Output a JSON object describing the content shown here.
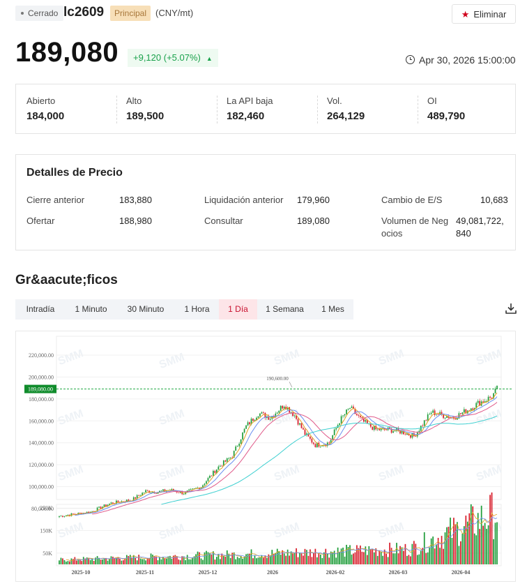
{
  "header": {
    "status_label": "Cerrado",
    "symbol": "lc2609",
    "contract_badge": "Principal",
    "unit": "(CNY/mt)",
    "remove_label": "Eliminar"
  },
  "quote": {
    "price": "189,080",
    "change_text": "+9,120 (+5.07%)",
    "timestamp": "Apr 30, 2026 15:00:00"
  },
  "stats": [
    {
      "label": "Abierto",
      "value": "184,000"
    },
    {
      "label": "Alto",
      "value": "189,500"
    },
    {
      "label": "La API baja",
      "value": "182,460"
    },
    {
      "label": "Vol.",
      "value": "264,129"
    },
    {
      "label": "OI",
      "value": "489,790"
    }
  ],
  "details": {
    "title": "Detalles de Precio",
    "items": [
      {
        "label": "Cierre anterior",
        "value": "183,880"
      },
      {
        "label": "Liquidación anterior",
        "value": "179,960"
      },
      {
        "label": "Cambio de E/S",
        "value": "10,683"
      },
      {
        "label": "Ofertar",
        "value": "188,980"
      },
      {
        "label": "Consultar",
        "value": "189,080"
      },
      {
        "label_line1": "Volumen de Neg",
        "label_line2": "ocios",
        "value_line1": "49,081,722,",
        "value_line2": "840"
      }
    ]
  },
  "charts": {
    "title": "Gr&aacute;ficos",
    "tabs": [
      "Intradía",
      "1 Minuto",
      "30 Minuto",
      "1 Hora",
      "1 Día",
      "1 Semana",
      "1 Mes"
    ],
    "active_tab": "1 Día",
    "download_icon": "download-icon"
  },
  "chart_data": {
    "type": "candlestick",
    "price_axis_labels": [
      "220,000.00",
      "200,000.00",
      "180,000.00",
      "160,000.00",
      "140,000.00",
      "120,000.00",
      "100,000.00",
      "80,000.00"
    ],
    "price_ticks": [
      220000,
      200000,
      180000,
      160000,
      140000,
      120000,
      100000,
      80000
    ],
    "current_price_label": "189,080.00",
    "current_price": 189080,
    "high_annotation": "190,600.00",
    "high_value": 190600,
    "volume_axis_labels": [
      "250K",
      "150K",
      "50K"
    ],
    "volume_ticks": [
      250000,
      150000,
      50000
    ],
    "date_labels": [
      "2025-10",
      "2025-11",
      "2025-12",
      "2026",
      "2026-02",
      "2026-03",
      "2026-04"
    ],
    "watermark": "SMM",
    "colors": {
      "up": "#1f9d3a",
      "down": "#d81e2c",
      "ma5": "#e0a020",
      "ma10": "#6a8ff0",
      "ma20": "#e05a8a",
      "ma60": "#3ccfd0",
      "price_line": "#22aa44"
    }
  }
}
